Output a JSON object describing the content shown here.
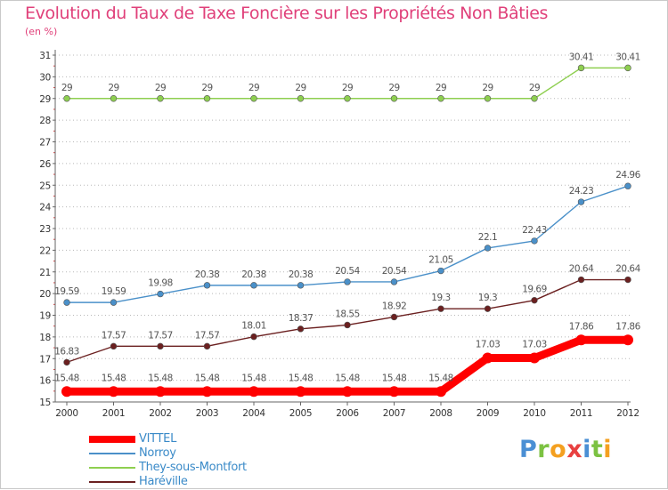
{
  "chart_data": {
    "type": "line",
    "title": "Evolution du Taux de Taxe Foncière sur les Propriétés Non Bâties",
    "subtitle": "(en %)",
    "xlabel": "",
    "ylabel": "",
    "categories": [
      "2000",
      "2001",
      "2002",
      "2003",
      "2004",
      "2005",
      "2006",
      "2007",
      "2008",
      "2009",
      "2010",
      "2011",
      "2012"
    ],
    "ylim": [
      15,
      31
    ],
    "yticks": [
      "15",
      "16",
      "17",
      "18",
      "19",
      "20",
      "21",
      "22",
      "23",
      "24",
      "25",
      "26",
      "27",
      "28",
      "29",
      "30",
      "31"
    ],
    "grid": "horizontal-dotted",
    "legend_position": "bottom-left",
    "series": [
      {
        "name": "VITTEL",
        "color": "#ff0000",
        "values": [
          15.48,
          15.48,
          15.48,
          15.48,
          15.48,
          15.48,
          15.48,
          15.48,
          15.48,
          17.03,
          17.03,
          17.86,
          17.86
        ],
        "labels": [
          "15.48",
          "15.48",
          "15.48",
          "15.48",
          "15.48",
          "15.48",
          "15.48",
          "15.48",
          "15.48",
          "17.03",
          "17.03",
          "17.86",
          "17.86"
        ]
      },
      {
        "name": "Norroy",
        "color": "#4a90c9",
        "values": [
          19.59,
          19.59,
          19.98,
          20.38,
          20.38,
          20.38,
          20.54,
          20.54,
          21.05,
          22.1,
          22.43,
          24.23,
          24.96
        ],
        "labels": [
          "19.59",
          "19.59",
          "19.98",
          "20.38",
          "20.38",
          "20.38",
          "20.54",
          "20.54",
          "21.05",
          "22.1",
          "22.43",
          "24.23",
          "24.96"
        ]
      },
      {
        "name": "They-sous-Montfort",
        "color": "#8ecf50",
        "values": [
          29,
          29,
          29,
          29,
          29,
          29,
          29,
          29,
          29,
          29,
          29,
          30.41,
          30.41
        ],
        "labels": [
          "29",
          "29",
          "29",
          "29",
          "29",
          "29",
          "29",
          "29",
          "29",
          "29",
          "29",
          "30.41",
          "30.41"
        ]
      },
      {
        "name": "Haréville",
        "color": "#6b2020",
        "values": [
          16.83,
          17.57,
          17.57,
          17.57,
          18.01,
          18.37,
          18.55,
          18.92,
          19.3,
          19.3,
          19.69,
          20.64,
          20.64
        ],
        "labels": [
          "16.83",
          "17.57",
          "17.57",
          "17.57",
          "18.01",
          "18.37",
          "18.55",
          "18.92",
          "19.3",
          "19.3",
          "19.69",
          "20.64",
          "20.64"
        ]
      }
    ]
  },
  "logo": {
    "letters": [
      "P",
      "r",
      "o",
      "x",
      "i",
      "t",
      "i"
    ],
    "colors": [
      "#4a8fd4",
      "#7cc242",
      "#f4a020",
      "#e84040",
      "#4a8fd4",
      "#7cc242",
      "#f4a020"
    ]
  }
}
